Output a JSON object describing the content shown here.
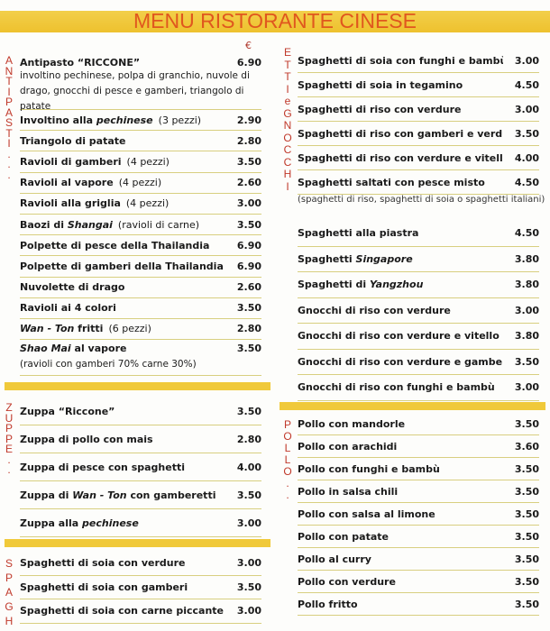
{
  "title": "MENU RISTORANTE CINESE",
  "currency": "€",
  "side_labels": {
    "antipasti": "ANTIPASTI...",
    "zuppe": "ZUPPE..",
    "spagh": "SPAGH",
    "etti_gnocchi": "ETTIeGNOCCHI",
    "pollo": "POLLO.."
  },
  "sections": {
    "antipasti": [
      {
        "pre": "Antipasto “RICCONE”",
        "price": "6.90",
        "desc": "involtino pechinese, polpa di granchio, nuvole di drago, gnocchi di pesce e gamberi, triangolo di patate"
      },
      {
        "pre": "Involtino alla ",
        "it": "pechinese",
        "note": "(3 pezzi)",
        "price": "2.90"
      },
      {
        "pre": "Triangolo di patate",
        "price": "2.80"
      },
      {
        "pre": "Ravioli di gamberi",
        "note": "(4 pezzi)",
        "price": "3.50"
      },
      {
        "pre": "Ravioli al vapore",
        "note": "(4 pezzi)",
        "price": "2.60"
      },
      {
        "pre": "Ravioli alla griglia",
        "note": "(4 pezzi)",
        "price": "3.00"
      },
      {
        "pre": "Baozi di ",
        "it": "Shangai",
        "note": "(ravioli di carne)",
        "price": "3.50"
      },
      {
        "pre": "Polpette di pesce della Thailandia",
        "price": "6.90"
      },
      {
        "pre": "Polpette di gamberi della Thailandia",
        "price": "6.90"
      },
      {
        "pre": "Nuvolette di drago",
        "price": "2.60"
      },
      {
        "pre": "Ravioli ai 4 colori",
        "price": "3.50"
      },
      {
        "it": "Wan - Ton",
        "post": " fritti",
        "note": "(6 pezzi)",
        "price": "2.80"
      },
      {
        "it": "Shao Mai",
        "post": " al vapore",
        "price": "3.50",
        "desc": "(ravioli con gamberi 70% carne 30%)"
      }
    ],
    "zuppe": [
      {
        "pre": "Zuppa “Riccone”",
        "price": "3.50"
      },
      {
        "pre": "Zuppa di pollo con mais",
        "price": "2.80"
      },
      {
        "pre": "Zuppa di pesce con spaghetti",
        "price": "4.00"
      },
      {
        "pre": "Zuppa di ",
        "it": "Wan - Ton",
        "post": " con gamberetti",
        "price": "3.50"
      },
      {
        "pre": "Zuppa alla ",
        "it": "pechinese",
        "price": "3.00"
      }
    ],
    "spaghetti_left": [
      {
        "pre": "Spaghetti di soia con verdure",
        "price": "3.00"
      },
      {
        "pre": "Spaghetti di soia con gamberi",
        "price": "3.50"
      },
      {
        "pre": "Spaghetti di soia con carne piccante",
        "price": "3.00"
      }
    ],
    "spaghetti_right": [
      {
        "pre": "Spaghetti di soia con funghi e bambù",
        "price": "3.00"
      },
      {
        "pre": "Spaghetti di soia in tegamino",
        "price": "4.50"
      },
      {
        "pre": "Spaghetti di riso con verdure",
        "price": "3.00"
      },
      {
        "pre": "Spaghetti di riso con gamberi e verdure",
        "price": "3.50"
      },
      {
        "pre": "Spaghetti di riso con verdure e vitello",
        "price": "4.00"
      },
      {
        "pre": "Spaghetti saltati con pesce misto",
        "price": "4.50"
      }
    ],
    "spaghetti_note": "(spaghetti di riso, spaghetti di soia o spaghetti italiani)",
    "gnocchi": [
      {
        "pre": "Spaghetti alla piastra",
        "price": "4.50"
      },
      {
        "pre": "Spaghetti ",
        "it": "Singapore",
        "price": "3.80"
      },
      {
        "pre": "Spaghetti di ",
        "it": "Yangzhou",
        "price": "3.80"
      },
      {
        "pre": "Gnocchi di riso con verdure",
        "price": "3.00"
      },
      {
        "pre": "Gnocchi di riso con verdure e vitello",
        "price": "3.80"
      },
      {
        "pre": "Gnocchi di riso con verdure e gamberi",
        "price": "3.50"
      },
      {
        "pre": "Gnocchi di riso con funghi e bambù",
        "price": "3.00"
      }
    ],
    "pollo": [
      {
        "pre": "Pollo con mandorle",
        "price": "3.50"
      },
      {
        "pre": "Pollo con arachidi",
        "price": "3.60"
      },
      {
        "pre": "Pollo con funghi e bambù",
        "price": "3.50"
      },
      {
        "pre": "Pollo in salsa chili",
        "price": "3.50"
      },
      {
        "pre": "Pollo con salsa al limone",
        "price": "3.50"
      },
      {
        "pre": "Pollo con patate",
        "price": "3.50"
      },
      {
        "pre": "Pollo al curry",
        "price": "3.50"
      },
      {
        "pre": "Pollo con verdure",
        "price": "3.50"
      },
      {
        "pre": "Pollo fritto",
        "price": "3.50"
      }
    ]
  },
  "colors": {
    "title": "#e0571e",
    "band": "#f0c93a",
    "side_letters": "#c0392b"
  }
}
